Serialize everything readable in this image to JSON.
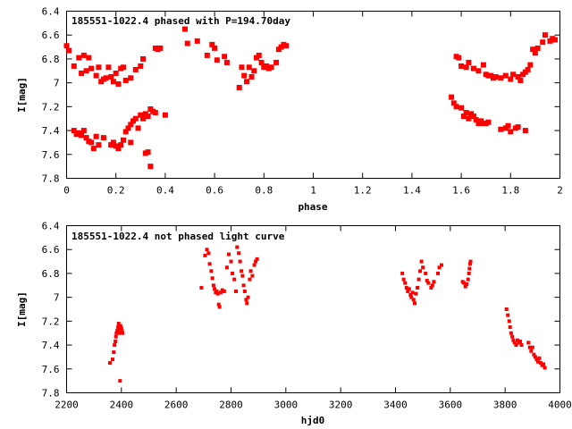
{
  "chart_data": [
    {
      "type": "scatter",
      "title": "185551-1022.4 phased with P=194.70day",
      "xlabel": "phase",
      "ylabel": "I[mag]",
      "xlim": [
        0,
        2
      ],
      "ylim": [
        6.4,
        7.8
      ],
      "y_inverted": true,
      "grid": false,
      "legend": "none",
      "color": "#ff0000",
      "marker": "dot",
      "xticks": [
        "0",
        "0.2",
        "0.4",
        "0.6",
        "0.8",
        "1",
        "1.2",
        "1.4",
        "1.6",
        "1.8",
        "2"
      ],
      "xtick_values": [
        0,
        0.2,
        0.4,
        0.6,
        0.8,
        1.0,
        1.2,
        1.4,
        1.6,
        1.8,
        2.0
      ],
      "yticks": [
        "6.4",
        "6.6",
        "6.8",
        "7",
        "7.2",
        "7.4",
        "7.6",
        "7.8"
      ],
      "ytick_values": [
        6.4,
        6.6,
        6.8,
        7.0,
        7.2,
        7.4,
        7.6,
        7.8
      ],
      "points": [
        [
          0.0,
          6.69
        ],
        [
          0.01,
          6.73
        ],
        [
          0.03,
          6.86
        ],
        [
          0.05,
          6.79
        ],
        [
          0.06,
          6.92
        ],
        [
          0.07,
          6.77
        ],
        [
          0.08,
          6.9
        ],
        [
          0.09,
          6.79
        ],
        [
          0.1,
          6.88
        ],
        [
          0.12,
          6.94
        ],
        [
          0.13,
          6.87
        ],
        [
          0.14,
          6.99
        ],
        [
          0.15,
          6.97
        ],
        [
          0.16,
          6.96
        ],
        [
          0.17,
          6.87
        ],
        [
          0.18,
          6.95
        ],
        [
          0.19,
          6.99
        ],
        [
          0.2,
          6.92
        ],
        [
          0.21,
          7.01
        ],
        [
          0.22,
          6.88
        ],
        [
          0.23,
          6.87
        ],
        [
          0.24,
          6.98
        ],
        [
          0.26,
          6.96
        ],
        [
          0.28,
          6.89
        ],
        [
          0.3,
          6.86
        ],
        [
          0.31,
          6.8
        ],
        [
          0.36,
          6.71
        ],
        [
          0.37,
          6.72
        ],
        [
          0.38,
          6.71
        ],
        [
          0.48,
          6.55
        ],
        [
          0.49,
          6.67
        ],
        [
          0.53,
          6.65
        ],
        [
          0.57,
          6.77
        ],
        [
          0.59,
          6.68
        ],
        [
          0.6,
          6.71
        ],
        [
          0.61,
          6.81
        ],
        [
          0.64,
          6.78
        ],
        [
          0.65,
          6.83
        ],
        [
          0.7,
          7.04
        ],
        [
          0.71,
          6.87
        ],
        [
          0.72,
          6.94
        ],
        [
          0.73,
          6.99
        ],
        [
          0.74,
          6.87
        ],
        [
          0.75,
          6.95
        ],
        [
          0.76,
          6.9
        ],
        [
          0.77,
          6.79
        ],
        [
          0.78,
          6.77
        ],
        [
          0.79,
          6.83
        ],
        [
          0.8,
          6.87
        ],
        [
          0.81,
          6.86
        ],
        [
          0.82,
          6.88
        ],
        [
          0.83,
          6.87
        ],
        [
          0.85,
          6.83
        ],
        [
          0.86,
          6.72
        ],
        [
          0.87,
          6.7
        ],
        [
          0.88,
          6.68
        ],
        [
          0.89,
          6.69
        ],
        [
          0.03,
          7.4
        ],
        [
          0.04,
          7.43
        ],
        [
          0.05,
          7.42
        ],
        [
          0.06,
          7.44
        ],
        [
          0.07,
          7.4
        ],
        [
          0.08,
          7.46
        ],
        [
          0.09,
          7.49
        ],
        [
          0.1,
          7.5
        ],
        [
          0.11,
          7.55
        ],
        [
          0.12,
          7.45
        ],
        [
          0.13,
          7.52
        ],
        [
          0.15,
          7.46
        ],
        [
          0.18,
          7.52
        ],
        [
          0.19,
          7.5
        ],
        [
          0.2,
          7.53
        ],
        [
          0.21,
          7.55
        ],
        [
          0.22,
          7.52
        ],
        [
          0.23,
          7.48
        ],
        [
          0.24,
          7.41
        ],
        [
          0.25,
          7.38
        ],
        [
          0.26,
          7.35
        ],
        [
          0.27,
          7.32
        ],
        [
          0.28,
          7.3
        ],
        [
          0.29,
          7.38
        ],
        [
          0.3,
          7.27
        ],
        [
          0.31,
          7.3
        ],
        [
          0.32,
          7.26
        ],
        [
          0.33,
          7.28
        ],
        [
          0.34,
          7.22
        ],
        [
          0.35,
          7.24
        ],
        [
          0.36,
          7.25
        ],
        [
          0.32,
          7.59
        ],
        [
          0.33,
          7.58
        ],
        [
          0.34,
          7.7
        ],
        [
          0.4,
          7.27
        ],
        [
          0.26,
          7.5
        ],
        [
          1.56,
          7.12
        ],
        [
          1.57,
          7.17
        ],
        [
          1.58,
          7.2
        ],
        [
          1.6,
          7.21
        ],
        [
          1.61,
          7.28
        ],
        [
          1.62,
          7.25
        ],
        [
          1.63,
          7.3
        ],
        [
          1.64,
          7.26
        ],
        [
          1.65,
          7.28
        ],
        [
          1.66,
          7.31
        ],
        [
          1.67,
          7.34
        ],
        [
          1.68,
          7.32
        ],
        [
          1.69,
          7.34
        ],
        [
          1.7,
          7.34
        ],
        [
          1.71,
          7.33
        ],
        [
          1.76,
          7.39
        ],
        [
          1.78,
          7.38
        ],
        [
          1.79,
          7.36
        ],
        [
          1.8,
          7.41
        ],
        [
          1.82,
          7.38
        ],
        [
          1.83,
          7.37
        ],
        [
          1.86,
          7.4
        ],
        [
          1.58,
          6.78
        ],
        [
          1.59,
          6.79
        ],
        [
          1.6,
          6.86
        ],
        [
          1.62,
          6.87
        ],
        [
          1.63,
          6.83
        ],
        [
          1.65,
          6.88
        ],
        [
          1.67,
          6.9
        ],
        [
          1.69,
          6.85
        ],
        [
          1.7,
          6.93
        ],
        [
          1.71,
          6.94
        ],
        [
          1.72,
          6.94
        ],
        [
          1.73,
          6.96
        ],
        [
          1.74,
          6.95
        ],
        [
          1.76,
          6.96
        ],
        [
          1.78,
          6.94
        ],
        [
          1.8,
          6.97
        ],
        [
          1.81,
          6.93
        ],
        [
          1.83,
          6.95
        ],
        [
          1.84,
          6.98
        ],
        [
          1.85,
          6.93
        ],
        [
          1.86,
          6.91
        ],
        [
          1.87,
          6.89
        ],
        [
          1.88,
          6.85
        ],
        [
          1.89,
          6.72
        ],
        [
          1.9,
          6.75
        ],
        [
          1.91,
          6.71
        ],
        [
          1.93,
          6.66
        ],
        [
          1.94,
          6.6
        ],
        [
          1.96,
          6.65
        ],
        [
          1.97,
          6.63
        ],
        [
          1.98,
          6.64
        ]
      ]
    },
    {
      "type": "scatter",
      "title": "185551-1022.4 not phased light curve",
      "xlabel": "hjd0",
      "ylabel": "I[mag]",
      "xlim": [
        2200,
        4000
      ],
      "ylim": [
        6.4,
        7.8
      ],
      "y_inverted": true,
      "grid": false,
      "legend": "none",
      "color": "#ff0000",
      "marker": "dot",
      "xticks": [
        "2200",
        "2400",
        "2600",
        "2800",
        "3000",
        "3200",
        "3400",
        "3600",
        "3800",
        "4000"
      ],
      "xtick_values": [
        2200,
        2400,
        2600,
        2800,
        3000,
        3200,
        3400,
        3600,
        3800,
        4000
      ],
      "yticks": [
        "6.4",
        "6.6",
        "6.8",
        "7",
        "7.2",
        "7.4",
        "7.6",
        "7.8"
      ],
      "ytick_values": [
        6.4,
        6.6,
        6.8,
        7.0,
        7.2,
        7.4,
        7.6,
        7.8
      ],
      "points": [
        [
          2358,
          7.55
        ],
        [
          2368,
          7.52
        ],
        [
          2372,
          7.46
        ],
        [
          2375,
          7.4
        ],
        [
          2378,
          7.37
        ],
        [
          2380,
          7.33
        ],
        [
          2382,
          7.3
        ],
        [
          2385,
          7.28
        ],
        [
          2388,
          7.25
        ],
        [
          2390,
          7.22
        ],
        [
          2392,
          7.3
        ],
        [
          2395,
          7.27
        ],
        [
          2397,
          7.24
        ],
        [
          2400,
          7.26
        ],
        [
          2402,
          7.28
        ],
        [
          2404,
          7.3
        ],
        [
          2395,
          7.7
        ],
        [
          2692,
          6.92
        ],
        [
          2705,
          6.65
        ],
        [
          2712,
          6.6
        ],
        [
          2718,
          6.63
        ],
        [
          2722,
          6.72
        ],
        [
          2728,
          6.78
        ],
        [
          2732,
          6.84
        ],
        [
          2736,
          6.9
        ],
        [
          2740,
          6.93
        ],
        [
          2744,
          6.96
        ],
        [
          2748,
          6.95
        ],
        [
          2752,
          6.97
        ],
        [
          2755,
          7.06
        ],
        [
          2758,
          7.08
        ],
        [
          2762,
          6.96
        ],
        [
          2768,
          6.94
        ],
        [
          2775,
          6.95
        ],
        [
          2785,
          6.75
        ],
        [
          2792,
          6.64
        ],
        [
          2800,
          6.7
        ],
        [
          2805,
          6.8
        ],
        [
          2812,
          6.85
        ],
        [
          2818,
          6.95
        ],
        [
          2822,
          6.58
        ],
        [
          2828,
          6.63
        ],
        [
          2833,
          6.7
        ],
        [
          2838,
          6.78
        ],
        [
          2842,
          6.82
        ],
        [
          2846,
          6.9
        ],
        [
          2850,
          6.95
        ],
        [
          2855,
          7.02
        ],
        [
          2858,
          7.05
        ],
        [
          2862,
          7.0
        ],
        [
          2868,
          6.85
        ],
        [
          2872,
          6.78
        ],
        [
          2878,
          6.82
        ],
        [
          2885,
          6.73
        ],
        [
          2890,
          6.7
        ],
        [
          2895,
          6.68
        ],
        [
          3425,
          6.8
        ],
        [
          3430,
          6.85
        ],
        [
          3435,
          6.88
        ],
        [
          3440,
          6.92
        ],
        [
          3445,
          6.95
        ],
        [
          3450,
          6.93
        ],
        [
          3455,
          6.98
        ],
        [
          3458,
          7.0
        ],
        [
          3462,
          6.96
        ],
        [
          3466,
          7.02
        ],
        [
          3470,
          7.05
        ],
        [
          3475,
          6.97
        ],
        [
          3480,
          6.92
        ],
        [
          3485,
          6.85
        ],
        [
          3490,
          6.78
        ],
        [
          3495,
          6.7
        ],
        [
          3500,
          6.75
        ],
        [
          3510,
          6.8
        ],
        [
          3515,
          6.86
        ],
        [
          3520,
          6.88
        ],
        [
          3530,
          6.92
        ],
        [
          3535,
          6.9
        ],
        [
          3540,
          6.87
        ],
        [
          3555,
          6.8
        ],
        [
          3560,
          6.75
        ],
        [
          3568,
          6.73
        ],
        [
          3645,
          6.87
        ],
        [
          3650,
          6.88
        ],
        [
          3655,
          6.91
        ],
        [
          3660,
          6.89
        ],
        [
          3665,
          6.85
        ],
        [
          3668,
          6.8
        ],
        [
          3670,
          6.76
        ],
        [
          3672,
          6.72
        ],
        [
          3674,
          6.7
        ],
        [
          3805,
          7.1
        ],
        [
          3810,
          7.15
        ],
        [
          3815,
          7.2
        ],
        [
          3818,
          7.25
        ],
        [
          3822,
          7.3
        ],
        [
          3826,
          7.33
        ],
        [
          3830,
          7.36
        ],
        [
          3835,
          7.38
        ],
        [
          3840,
          7.4
        ],
        [
          3845,
          7.36
        ],
        [
          3850,
          7.38
        ],
        [
          3855,
          7.37
        ],
        [
          3860,
          7.4
        ],
        [
          3885,
          7.38
        ],
        [
          3890,
          7.42
        ],
        [
          3895,
          7.45
        ],
        [
          3900,
          7.42
        ],
        [
          3905,
          7.48
        ],
        [
          3910,
          7.5
        ],
        [
          3915,
          7.52
        ],
        [
          3920,
          7.54
        ],
        [
          3925,
          7.51
        ],
        [
          3930,
          7.55
        ],
        [
          3935,
          7.57
        ],
        [
          3940,
          7.56
        ],
        [
          3945,
          7.59
        ]
      ]
    }
  ]
}
